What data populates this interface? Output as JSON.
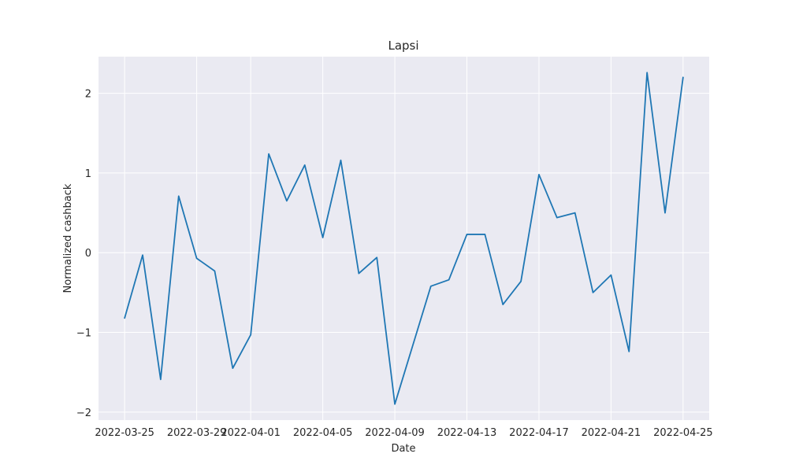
{
  "chart_data": {
    "type": "line",
    "title": "Lapsi",
    "xlabel": "Date",
    "ylabel": "Normalized cashback",
    "grid": true,
    "legend": "none",
    "colors": {
      "plot_background": "#eaeaf2",
      "grid": "#ffffff",
      "line": "#1f77b4",
      "text": "#262626"
    },
    "x_ticks": [
      "2022-03-25",
      "2022-03-29",
      "2022-04-01",
      "2022-04-05",
      "2022-04-09",
      "2022-04-13",
      "2022-04-17",
      "2022-04-21",
      "2022-04-25"
    ],
    "y_ticks": [
      -2,
      -1,
      0,
      1,
      2
    ],
    "xlim": [
      "2022-03-23T13:12",
      "2022-04-26T10:48"
    ],
    "ylim": [
      -2.1,
      2.46
    ],
    "series": [
      {
        "x": [
          "2022-03-25",
          "2022-03-26",
          "2022-03-27",
          "2022-03-28",
          "2022-03-29",
          "2022-03-30",
          "2022-03-31",
          "2022-04-01",
          "2022-04-02",
          "2022-04-03",
          "2022-04-04",
          "2022-04-05",
          "2022-04-06",
          "2022-04-07",
          "2022-04-08",
          "2022-04-09",
          "2022-04-10",
          "2022-04-11",
          "2022-04-12",
          "2022-04-13",
          "2022-04-14",
          "2022-04-15",
          "2022-04-16",
          "2022-04-17",
          "2022-04-18",
          "2022-04-19",
          "2022-04-20",
          "2022-04-21",
          "2022-04-22",
          "2022-04-23",
          "2022-04-24",
          "2022-04-25"
        ],
        "values": [
          -0.82,
          -0.03,
          -1.59,
          0.71,
          -0.07,
          -0.23,
          -1.45,
          -1.03,
          1.24,
          0.65,
          1.1,
          0.19,
          1.16,
          -0.26,
          -0.06,
          -1.9,
          -1.16,
          -0.42,
          -0.34,
          0.23,
          0.23,
          -0.65,
          -0.36,
          0.98,
          0.44,
          0.5,
          -0.5,
          -0.28,
          -1.24,
          2.26,
          0.5,
          2.2
        ]
      }
    ]
  }
}
